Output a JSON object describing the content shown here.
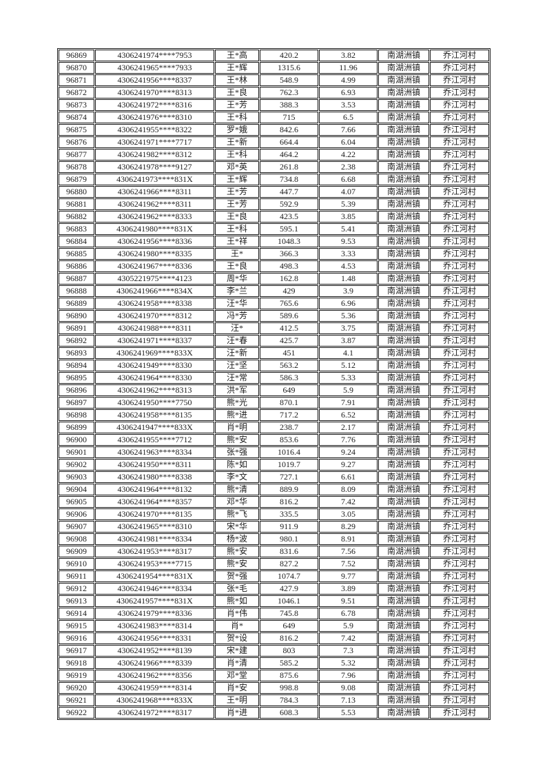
{
  "table": {
    "rows": [
      [
        "96869",
        "4306241974****7953",
        "王*高",
        "420.2",
        "3.82",
        "南湖洲镇",
        "乔江河村"
      ],
      [
        "96870",
        "4306241965****7933",
        "王*辉",
        "1315.6",
        "11.96",
        "南湖洲镇",
        "乔江河村"
      ],
      [
        "96871",
        "4306241956****8337",
        "王*林",
        "548.9",
        "4.99",
        "南湖洲镇",
        "乔江河村"
      ],
      [
        "96872",
        "4306241970****8313",
        "王*良",
        "762.3",
        "6.93",
        "南湖洲镇",
        "乔江河村"
      ],
      [
        "96873",
        "4306241972****8316",
        "王*芳",
        "388.3",
        "3.53",
        "南湖洲镇",
        "乔江河村"
      ],
      [
        "96874",
        "4306241976****8310",
        "王*科",
        "715",
        "6.5",
        "南湖洲镇",
        "乔江河村"
      ],
      [
        "96875",
        "4306241955****8322",
        "罗*娥",
        "842.6",
        "7.66",
        "南湖洲镇",
        "乔江河村"
      ],
      [
        "96876",
        "4306241971****7717",
        "王*新",
        "664.4",
        "6.04",
        "南湖洲镇",
        "乔江河村"
      ],
      [
        "96877",
        "4306241982****8312",
        "王*科",
        "464.2",
        "4.22",
        "南湖洲镇",
        "乔江河村"
      ],
      [
        "96878",
        "4306241978****9127",
        "邓*英",
        "261.8",
        "2.38",
        "南湖洲镇",
        "乔江河村"
      ],
      [
        "96879",
        "4306241973****831X",
        "王*辉",
        "734.8",
        "6.68",
        "南湖洲镇",
        "乔江河村"
      ],
      [
        "96880",
        "4306241966****8311",
        "王*芳",
        "447.7",
        "4.07",
        "南湖洲镇",
        "乔江河村"
      ],
      [
        "96881",
        "4306241962****8311",
        "王*芳",
        "592.9",
        "5.39",
        "南湖洲镇",
        "乔江河村"
      ],
      [
        "96882",
        "4306241962****8333",
        "王*良",
        "423.5",
        "3.85",
        "南湖洲镇",
        "乔江河村"
      ],
      [
        "96883",
        "4306241980****831X",
        "王*科",
        "595.1",
        "5.41",
        "南湖洲镇",
        "乔江河村"
      ],
      [
        "96884",
        "4306241956****8336",
        "王*祥",
        "1048.3",
        "9.53",
        "南湖洲镇",
        "乔江河村"
      ],
      [
        "96885",
        "4306241980****8335",
        "王*",
        "366.3",
        "3.33",
        "南湖洲镇",
        "乔江河村"
      ],
      [
        "96886",
        "4306241967****8336",
        "王*良",
        "498.3",
        "4.53",
        "南湖洲镇",
        "乔江河村"
      ],
      [
        "96887",
        "4305221975****4123",
        "周*华",
        "162.8",
        "1.48",
        "南湖洲镇",
        "乔江河村"
      ],
      [
        "96888",
        "4306241966****834X",
        "李*兰",
        "429",
        "3.9",
        "南湖洲镇",
        "乔江河村"
      ],
      [
        "96889",
        "4306241958****8338",
        "汪*华",
        "765.6",
        "6.96",
        "南湖洲镇",
        "乔江河村"
      ],
      [
        "96890",
        "4306241970****8312",
        "冯*芳",
        "589.6",
        "5.36",
        "南湖洲镇",
        "乔江河村"
      ],
      [
        "96891",
        "4306241988****8311",
        "汪*",
        "412.5",
        "3.75",
        "南湖洲镇",
        "乔江河村"
      ],
      [
        "96892",
        "4306241971****8337",
        "汪*春",
        "425.7",
        "3.87",
        "南湖洲镇",
        "乔江河村"
      ],
      [
        "96893",
        "4306241969****833X",
        "汪*新",
        "451",
        "4.1",
        "南湖洲镇",
        "乔江河村"
      ],
      [
        "96894",
        "4306241949****8330",
        "汪*坚",
        "563.2",
        "5.12",
        "南湖洲镇",
        "乔江河村"
      ],
      [
        "96895",
        "4306241964****8330",
        "汪*常",
        "586.3",
        "5.33",
        "南湖洲镇",
        "乔江河村"
      ],
      [
        "96896",
        "4306241962****8313",
        "洪*军",
        "649",
        "5.9",
        "南湖洲镇",
        "乔江河村"
      ],
      [
        "96897",
        "4306241950****7750",
        "熊*光",
        "870.1",
        "7.91",
        "南湖洲镇",
        "乔江河村"
      ],
      [
        "96898",
        "4306241958****8135",
        "熊*进",
        "717.2",
        "6.52",
        "南湖洲镇",
        "乔江河村"
      ],
      [
        "96899",
        "4306241947****833X",
        "肖*明",
        "238.7",
        "2.17",
        "南湖洲镇",
        "乔江河村"
      ],
      [
        "96900",
        "4306241955****7712",
        "熊*安",
        "853.6",
        "7.76",
        "南湖洲镇",
        "乔江河村"
      ],
      [
        "96901",
        "4306241963****8334",
        "张*强",
        "1016.4",
        "9.24",
        "南湖洲镇",
        "乔江河村"
      ],
      [
        "96902",
        "4306241950****8311",
        "陈*如",
        "1019.7",
        "9.27",
        "南湖洲镇",
        "乔江河村"
      ],
      [
        "96903",
        "4306241980****8338",
        "李*文",
        "727.1",
        "6.61",
        "南湖洲镇",
        "乔江河村"
      ],
      [
        "96904",
        "4306241964****8132",
        "熊*清",
        "889.9",
        "8.09",
        "南湖洲镇",
        "乔江河村"
      ],
      [
        "96905",
        "4306241964****8357",
        "邓*华",
        "816.2",
        "7.42",
        "南湖洲镇",
        "乔江河村"
      ],
      [
        "96906",
        "4306241970****8135",
        "熊*飞",
        "335.5",
        "3.05",
        "南湖洲镇",
        "乔江河村"
      ],
      [
        "96907",
        "4306241965****8310",
        "宋*华",
        "911.9",
        "8.29",
        "南湖洲镇",
        "乔江河村"
      ],
      [
        "96908",
        "4306241981****8334",
        "杨*波",
        "980.1",
        "8.91",
        "南湖洲镇",
        "乔江河村"
      ],
      [
        "96909",
        "4306241953****8317",
        "熊*安",
        "831.6",
        "7.56",
        "南湖洲镇",
        "乔江河村"
      ],
      [
        "96910",
        "4306241953****7715",
        "熊*安",
        "827.2",
        "7.52",
        "南湖洲镇",
        "乔江河村"
      ],
      [
        "96911",
        "4306241954****831X",
        "贺*强",
        "1074.7",
        "9.77",
        "南湖洲镇",
        "乔江河村"
      ],
      [
        "96912",
        "4306241946****8334",
        "张*毛",
        "427.9",
        "3.89",
        "南湖洲镇",
        "乔江河村"
      ],
      [
        "96913",
        "4306241957****831X",
        "熊*如",
        "1046.1",
        "9.51",
        "南湖洲镇",
        "乔江河村"
      ],
      [
        "96914",
        "4306241979****8336",
        "肖*伟",
        "745.8",
        "6.78",
        "南湖洲镇",
        "乔江河村"
      ],
      [
        "96915",
        "4306241983****8314",
        "肖*",
        "649",
        "5.9",
        "南湖洲镇",
        "乔江河村"
      ],
      [
        "96916",
        "4306241956****8331",
        "贺*设",
        "816.2",
        "7.42",
        "南湖洲镇",
        "乔江河村"
      ],
      [
        "96917",
        "4306241952****8139",
        "宋*建",
        "803",
        "7.3",
        "南湖洲镇",
        "乔江河村"
      ],
      [
        "96918",
        "4306241966****8339",
        "肖*清",
        "585.2",
        "5.32",
        "南湖洲镇",
        "乔江河村"
      ],
      [
        "96919",
        "4306241962****8356",
        "邓*堂",
        "875.6",
        "7.96",
        "南湖洲镇",
        "乔江河村"
      ],
      [
        "96920",
        "4306241959****8314",
        "肖*安",
        "998.8",
        "9.08",
        "南湖洲镇",
        "乔江河村"
      ],
      [
        "96921",
        "4306241968****833X",
        "王*明",
        "784.3",
        "7.13",
        "南湖洲镇",
        "乔江河村"
      ],
      [
        "96922",
        "4306241972****8317",
        "肖*进",
        "608.3",
        "5.53",
        "南湖洲镇",
        "乔江河村"
      ]
    ]
  }
}
